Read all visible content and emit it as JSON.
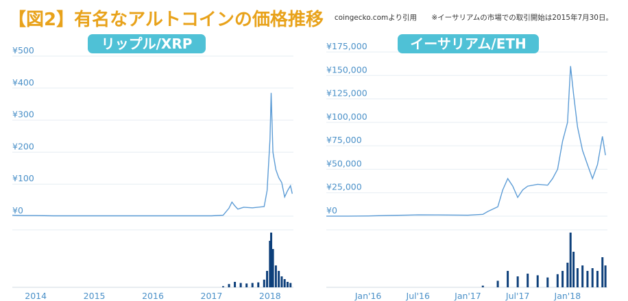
{
  "title": "【図2】有名なアルトコインの価格推移",
  "source": "coingecko.comより引用",
  "note": "※イーサリアムの市場での取引開始は2015年7月30日。",
  "colors": {
    "title": "#e8a21a",
    "line": "#5b9bd5",
    "volume": "#0d3f7a",
    "badge": "#4fc1d6",
    "axis": "#4a90c8"
  },
  "chart_data": [
    {
      "type": "line",
      "title": "リップル/XRP",
      "y_tick_labels": [
        "¥0",
        "¥100",
        "¥200",
        "¥300",
        "¥400",
        "¥500"
      ],
      "y_ticks": [
        0,
        100,
        200,
        300,
        400,
        500
      ],
      "ylim": [
        0,
        500
      ],
      "x_tick_labels": [
        "2014",
        "2015",
        "2016",
        "2017",
        "2018"
      ],
      "x_ticks": [
        2014.0,
        2015.0,
        2016.0,
        2017.0,
        2018.0
      ],
      "xlim": [
        2013.6,
        2018.4
      ],
      "unit": "JPY",
      "series": [
        {
          "x": [
            2013.6,
            2013.8,
            2014.0,
            2014.3,
            2014.6,
            2015.0,
            2015.5,
            2016.0,
            2016.5,
            2017.0,
            2017.2,
            2017.3,
            2017.35,
            2017.4,
            2017.45,
            2017.55,
            2017.7,
            2017.9,
            2017.95,
            2018.0,
            2018.02,
            2018.05,
            2018.1,
            2018.15,
            2018.2,
            2018.25,
            2018.3,
            2018.35,
            2018.38
          ],
          "y": [
            3,
            2,
            2,
            1,
            1,
            1,
            1,
            1,
            1,
            1,
            3,
            25,
            44,
            32,
            22,
            28,
            26,
            30,
            80,
            240,
            385,
            200,
            145,
            120,
            105,
            60,
            80,
            95,
            70
          ]
        }
      ],
      "volume": {
        "x": [
          2017.2,
          2017.3,
          2017.4,
          2017.5,
          2017.6,
          2017.7,
          2017.8,
          2017.9,
          2017.95,
          2018.0,
          2018.02,
          2018.05,
          2018.1,
          2018.15,
          2018.2,
          2018.25,
          2018.3,
          2018.35
        ],
        "v": [
          2,
          6,
          10,
          8,
          7,
          8,
          9,
          14,
          30,
          85,
          100,
          70,
          40,
          30,
          20,
          15,
          10,
          8
        ]
      }
    },
    {
      "type": "line",
      "title": "イーサリアム/ETH",
      "y_tick_labels": [
        "¥0",
        "¥25,000",
        "¥50,000",
        "¥75,000",
        "¥100,000",
        "¥125,000",
        "¥150,000",
        "¥175,000"
      ],
      "y_ticks": [
        0,
        25000,
        50000,
        75000,
        100000,
        125000,
        150000,
        175000
      ],
      "ylim": [
        0,
        175000
      ],
      "x_tick_labels": [
        "Jan'16",
        "Jul'16",
        "Jan'17",
        "Jul'17",
        "Jan'18"
      ],
      "x_ticks": [
        2016.0,
        2016.5,
        2017.0,
        2017.5,
        2018.0
      ],
      "xlim": [
        2015.58,
        2018.4
      ],
      "unit": "JPY",
      "series": [
        {
          "x": [
            2015.58,
            2015.8,
            2016.0,
            2016.2,
            2016.4,
            2016.5,
            2016.7,
            2017.0,
            2017.15,
            2017.2,
            2017.3,
            2017.35,
            2017.4,
            2017.45,
            2017.5,
            2017.55,
            2017.6,
            2017.7,
            2017.8,
            2017.85,
            2017.9,
            2017.95,
            2018.0,
            2018.03,
            2018.06,
            2018.1,
            2018.15,
            2018.2,
            2018.25,
            2018.3,
            2018.35,
            2018.38
          ],
          "y": [
            100,
            100,
            200,
            800,
            1200,
            1400,
            1300,
            1000,
            2000,
            5000,
            10000,
            28000,
            40000,
            32000,
            20000,
            28000,
            32000,
            34000,
            33000,
            40000,
            50000,
            80000,
            100000,
            160000,
            130000,
            95000,
            70000,
            55000,
            40000,
            55000,
            85000,
            65000
          ]
        }
      ],
      "volume": {
        "x": [
          2017.15,
          2017.3,
          2017.4,
          2017.5,
          2017.6,
          2017.7,
          2017.8,
          2017.9,
          2017.95,
          2018.0,
          2018.03,
          2018.06,
          2018.1,
          2018.15,
          2018.2,
          2018.25,
          2018.3,
          2018.35,
          2018.38
        ],
        "v": [
          3,
          12,
          30,
          20,
          25,
          22,
          18,
          24,
          30,
          45,
          100,
          65,
          35,
          40,
          30,
          35,
          30,
          55,
          40
        ]
      }
    }
  ]
}
